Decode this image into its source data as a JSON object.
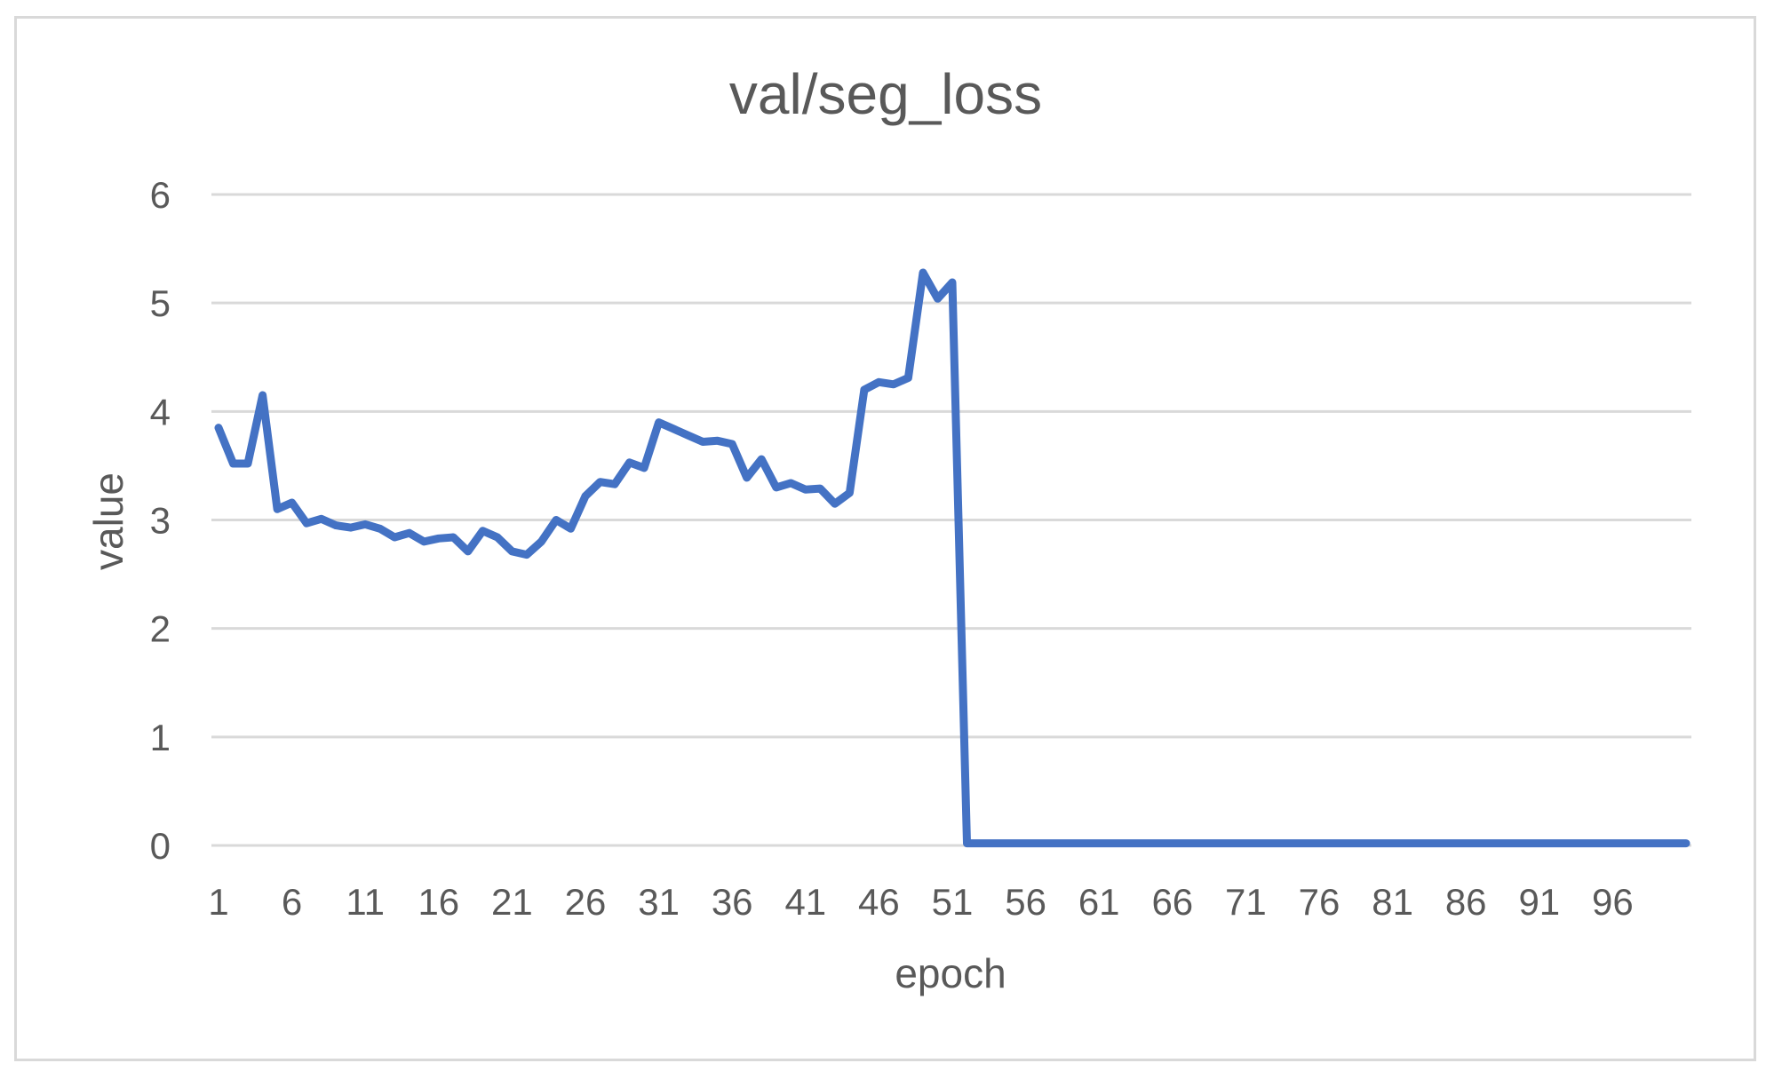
{
  "chart_data": {
    "type": "line",
    "title": "val/seg_loss",
    "xlabel": "epoch",
    "ylabel": "value",
    "ylim": [
      0,
      6
    ],
    "y_ticks": [
      "0",
      "1",
      "2",
      "3",
      "4",
      "5",
      "6"
    ],
    "x_ticks": [
      "1",
      "6",
      "11",
      "16",
      "21",
      "26",
      "31",
      "36",
      "41",
      "46",
      "51",
      "56",
      "61",
      "66",
      "71",
      "76",
      "81",
      "86",
      "91",
      "96"
    ],
    "grid": true,
    "legend": "none",
    "line_color": "#4472c4",
    "series": [
      {
        "x": [
          1,
          2,
          3,
          4,
          5,
          6,
          7,
          8,
          9,
          10,
          11,
          12,
          13,
          14,
          15,
          16,
          17,
          18,
          19,
          20,
          21,
          22,
          23,
          24,
          25,
          26,
          27,
          28,
          29,
          30,
          31,
          32,
          33,
          34,
          35,
          36,
          37,
          38,
          39,
          40,
          41,
          42,
          43,
          44,
          45,
          46,
          47,
          48,
          49,
          50,
          51,
          52,
          53,
          54,
          55,
          56,
          57,
          58,
          59,
          60,
          61,
          62,
          63,
          64,
          65,
          66,
          67,
          68,
          69,
          70,
          71,
          72,
          73,
          74,
          75,
          76,
          77,
          78,
          79,
          80,
          81,
          82,
          83,
          84,
          85,
          86,
          87,
          88,
          89,
          90,
          91,
          92,
          93,
          94,
          95,
          96,
          97,
          98,
          99,
          100,
          101
        ],
        "values": [
          3.85,
          3.52,
          3.52,
          4.15,
          3.1,
          3.16,
          2.97,
          3.01,
          2.95,
          2.93,
          2.96,
          2.92,
          2.84,
          2.88,
          2.8,
          2.83,
          2.84,
          2.71,
          2.9,
          2.84,
          2.71,
          2.68,
          2.8,
          3.0,
          2.92,
          3.22,
          3.35,
          3.33,
          3.53,
          3.48,
          3.9,
          3.84,
          3.78,
          3.72,
          3.73,
          3.7,
          3.39,
          3.56,
          3.3,
          3.34,
          3.28,
          3.29,
          3.15,
          3.25,
          4.2,
          4.27,
          4.25,
          4.31,
          5.28,
          5.04,
          5.19,
          0.02,
          0.02,
          0.02,
          0.02,
          0.02,
          0.02,
          0.02,
          0.02,
          0.02,
          0.02,
          0.02,
          0.02,
          0.02,
          0.02,
          0.02,
          0.02,
          0.02,
          0.02,
          0.02,
          0.02,
          0.02,
          0.02,
          0.02,
          0.02,
          0.02,
          0.02,
          0.02,
          0.02,
          0.02,
          0.02,
          0.02,
          0.02,
          0.02,
          0.02,
          0.02,
          0.02,
          0.02,
          0.02,
          0.02,
          0.02,
          0.02,
          0.02,
          0.02,
          0.02,
          0.02,
          0.02,
          0.02,
          0.02,
          0.02,
          0.02
        ]
      }
    ]
  }
}
